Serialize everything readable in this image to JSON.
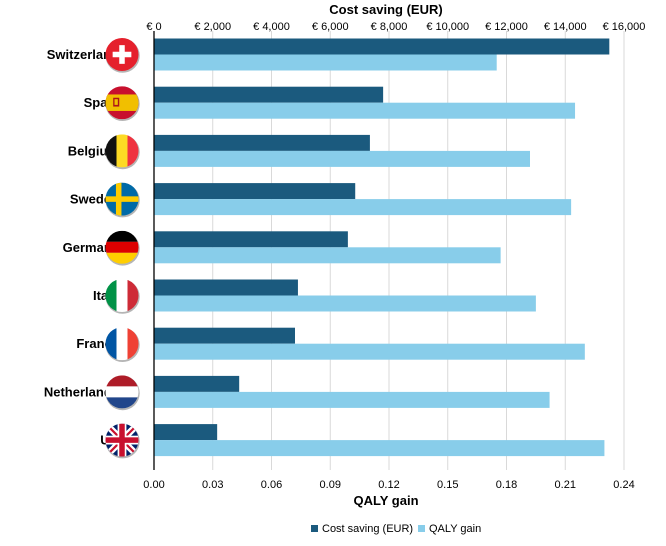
{
  "chart_data": {
    "type": "bar",
    "orientation": "horizontal",
    "categories": [
      "Switzerland",
      "Spain",
      "Belgium",
      "Sweden",
      "Germany",
      "Italy",
      "France",
      "Netherlands",
      "UK"
    ],
    "series": [
      {
        "name": "Cost saving (EUR)",
        "axis": "top",
        "color": "#1b5a7e",
        "values": [
          15500,
          7800,
          7350,
          6850,
          6600,
          4900,
          4800,
          2900,
          2150
        ]
      },
      {
        "name": "QALY gain",
        "axis": "bottom",
        "color": "#88cdea",
        "values": [
          0.175,
          0.215,
          0.192,
          0.213,
          0.177,
          0.195,
          0.22,
          0.202,
          0.23
        ]
      }
    ],
    "top_axis": {
      "title": "Cost saving (EUR)",
      "min": 0,
      "max": 16000,
      "ticks": [
        0,
        2000,
        4000,
        6000,
        8000,
        10000,
        12000,
        14000,
        16000
      ],
      "tick_labels": [
        "€ 0",
        "€ 2,000",
        "€ 4,000",
        "€ 6,000",
        "€ 8,000",
        "€ 10,000",
        "€ 12,000",
        "€ 14,000",
        "€ 16,000"
      ]
    },
    "bottom_axis": {
      "title": "QALY gain",
      "min": 0,
      "max": 0.24,
      "ticks": [
        0,
        0.03,
        0.06,
        0.09,
        0.12,
        0.15,
        0.18,
        0.21,
        0.24
      ],
      "tick_labels": [
        "0.00",
        "0.03",
        "0.06",
        "0.09",
        "0.12",
        "0.15",
        "0.18",
        "0.21",
        "0.24"
      ]
    },
    "legend": {
      "position": "bottom",
      "items": [
        "Cost saving (EUR)",
        "QALY gain"
      ]
    },
    "grid": "vertical",
    "flags": [
      "switzerland-flag-icon",
      "spain-flag-icon",
      "belgium-flag-icon",
      "sweden-flag-icon",
      "germany-flag-icon",
      "italy-flag-icon",
      "france-flag-icon",
      "netherlands-flag-icon",
      "uk-flag-icon"
    ]
  }
}
